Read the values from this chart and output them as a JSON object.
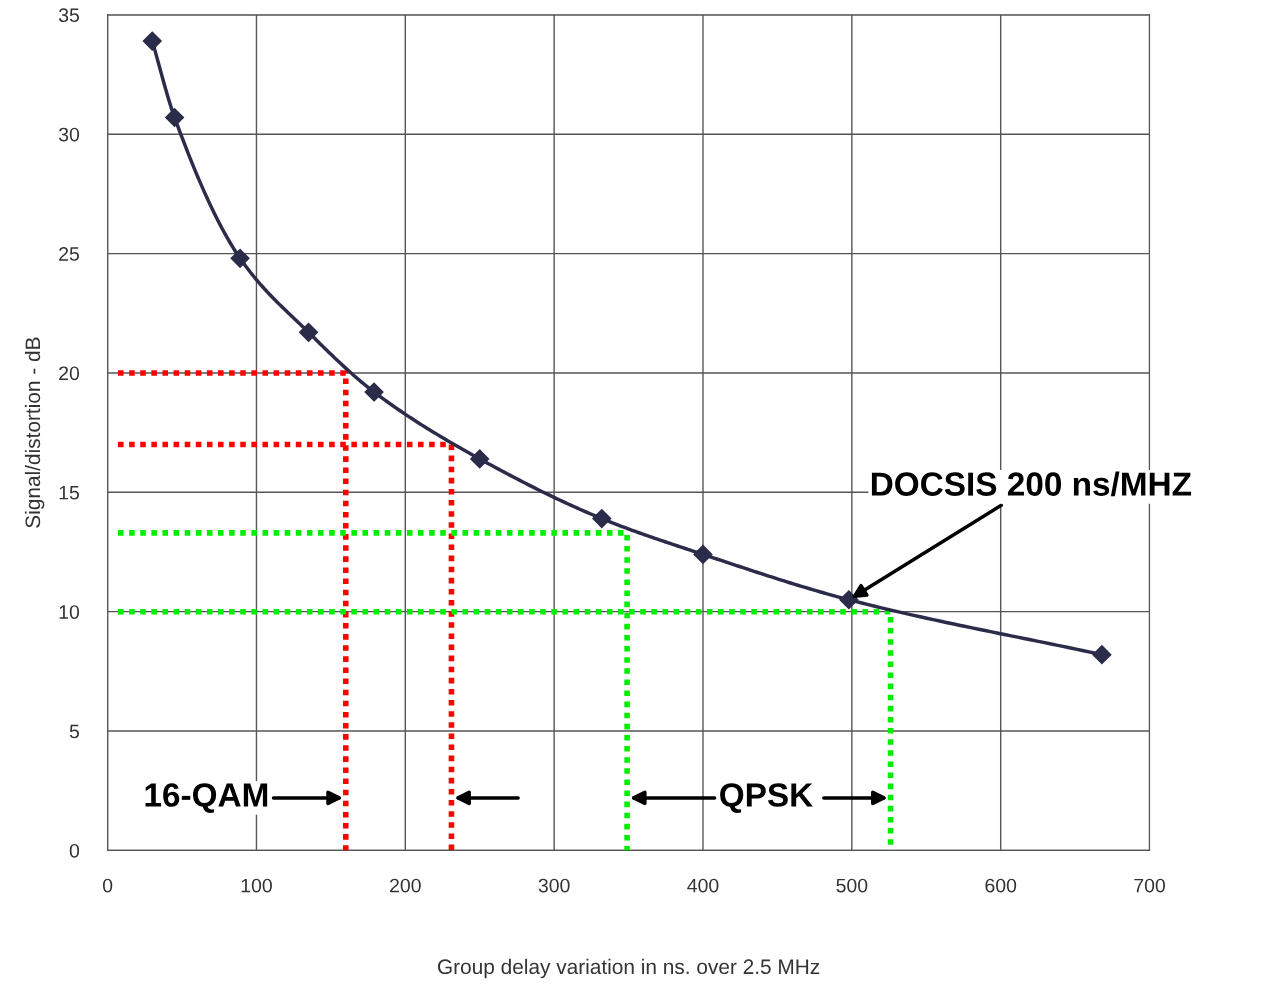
{
  "chart_data": {
    "type": "line",
    "xlabel": "Group delay variation in ns. over 2.5 MHz",
    "ylabel": "Signal/distortion - dB",
    "xlim": [
      0,
      700
    ],
    "xticks": [
      0,
      100,
      200,
      300,
      400,
      500,
      600,
      700
    ],
    "ylim": [
      0,
      35
    ],
    "yticks": [
      0,
      5,
      10,
      15,
      20,
      25,
      30,
      35
    ],
    "grid": true,
    "legend": false,
    "series": [
      {
        "color": "#2b2b4a",
        "marker": "diamond",
        "line_style": "solid",
        "x": [
          30,
          45,
          89,
          135,
          179,
          250,
          332,
          400,
          498,
          668
        ],
        "values": [
          33.9,
          30.7,
          24.8,
          21.7,
          19.2,
          16.4,
          13.9,
          12.4,
          10.5,
          8.2
        ]
      },
      {
        "color": "#ff0000",
        "marker": "none",
        "line_style": "dotted",
        "x": [
          7,
          160,
          160
        ],
        "values": [
          20,
          20,
          0
        ]
      },
      {
        "color": "#ff0000",
        "marker": "none",
        "line_style": "dotted",
        "x": [
          7,
          231,
          231
        ],
        "values": [
          17,
          17,
          0
        ]
      },
      {
        "color": "#00ee00",
        "marker": "none",
        "line_style": "dotted",
        "x": [
          7,
          349,
          349
        ],
        "values": [
          13.3,
          13.3,
          0
        ]
      },
      {
        "color": "#00ee00",
        "marker": "none",
        "line_style": "dotted",
        "x": [
          7,
          526,
          526
        ],
        "values": [
          10,
          10,
          0
        ]
      }
    ],
    "annotations": [
      {
        "text": "16-QAM",
        "x": 160,
        "y": 2.2
      },
      {
        "text": "QPSK",
        "x": 349,
        "y": 2.2
      },
      {
        "text": "DOCSIS 200 ns/MHZ",
        "x": 498,
        "y": 10.5
      }
    ]
  }
}
